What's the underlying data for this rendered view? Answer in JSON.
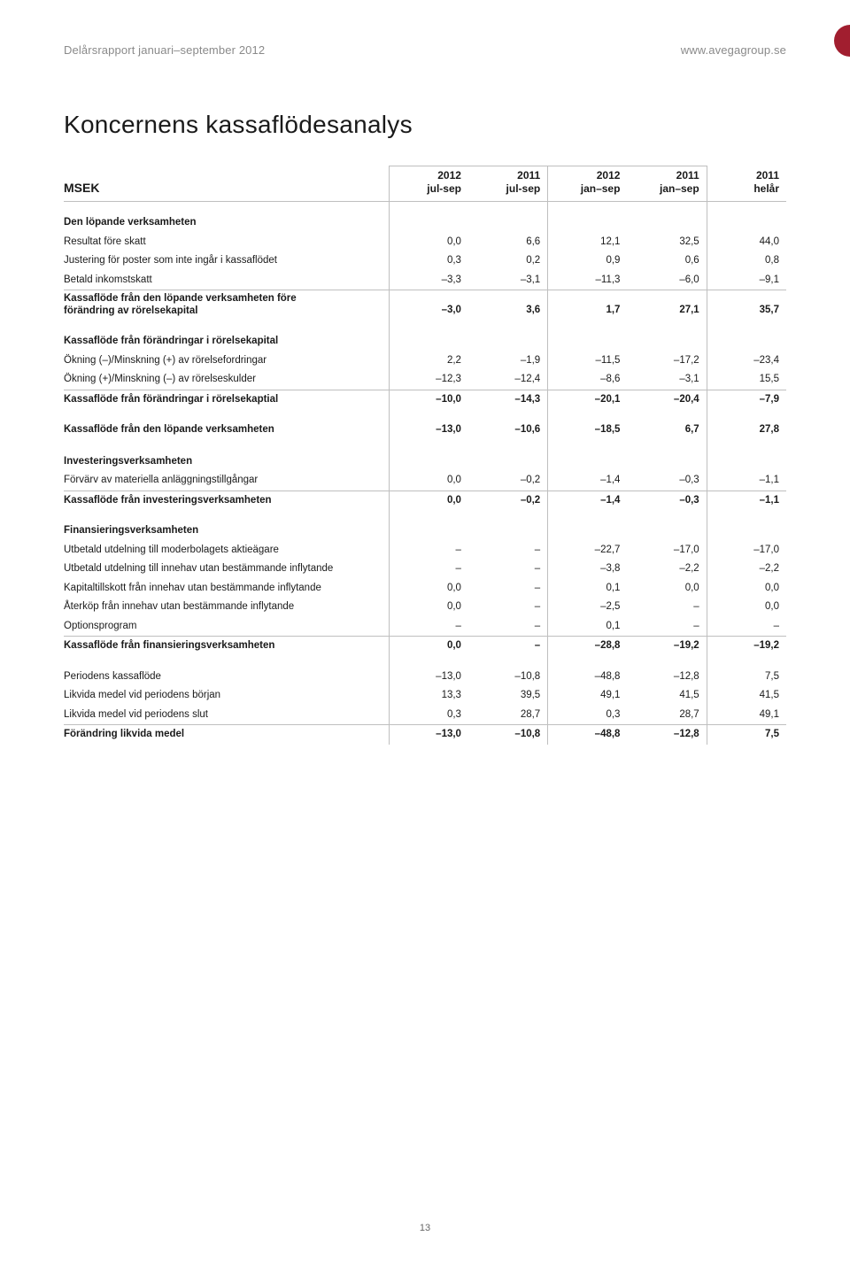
{
  "header": {
    "left": "Delårsrapport januari–september 2012",
    "right": "www.avegagroup.se"
  },
  "colors": {
    "spot": "#a11e2f",
    "txt_header": "#8a8a8a",
    "rule": "#bfbfbf",
    "body_text": "#1a1a1a"
  },
  "title": "Koncernens kassaflödesanalys",
  "columns": {
    "row_header": "MSEK",
    "headers": [
      {
        "y": "2012",
        "p": "jul-sep"
      },
      {
        "y": "2011",
        "p": "jul-sep"
      },
      {
        "y": "2012",
        "p": "jan–sep"
      },
      {
        "y": "2011",
        "p": "jan–sep"
      },
      {
        "y": "2011",
        "p": "helår"
      }
    ]
  },
  "sections": [
    {
      "title": "Den löpande verksamheten",
      "rows": [
        {
          "label": "Resultat före skatt",
          "v": [
            "0,0",
            "6,6",
            "12,1",
            "32,5",
            "44,0"
          ]
        },
        {
          "label": "Justering för poster som inte ingår i kassaflödet",
          "v": [
            "0,3",
            "0,2",
            "0,9",
            "0,6",
            "0,8"
          ]
        },
        {
          "label": "Betald inkomstskatt",
          "v": [
            "–3,3",
            "–3,1",
            "–11,3",
            "–6,0",
            "–9,1"
          ]
        }
      ],
      "subtotal": {
        "label": "Kassaflöde från den löpande verksamheten före förändring av rörelsekapital",
        "v": [
          "–3,0",
          "3,6",
          "1,7",
          "27,1",
          "35,7"
        ],
        "twoline": true
      }
    },
    {
      "title": "Kassaflöde från förändringar i rörelsekapital",
      "rows": [
        {
          "label": "Ökning (–)/Minskning (+) av rörelsefordringar",
          "v": [
            "2,2",
            "–1,9",
            "–11,5",
            "–17,2",
            "–23,4"
          ]
        },
        {
          "label": "Ökning (+)/Minskning (–) av rörelseskulder",
          "v": [
            "–12,3",
            "–12,4",
            "–8,6",
            "–3,1",
            "15,5"
          ]
        }
      ],
      "subtotal": {
        "label": "Kassaflöde från förändringar i rörelsekaptial",
        "v": [
          "–10,0",
          "–14,3",
          "–20,1",
          "–20,4",
          "–7,9"
        ]
      }
    },
    {
      "standalone": true,
      "subtotal": {
        "label": "Kassaflöde från den löpande verksamheten",
        "v": [
          "–13,0",
          "–10,6",
          "–18,5",
          "6,7",
          "27,8"
        ]
      }
    },
    {
      "title": "Investeringsverksamheten",
      "rows": [
        {
          "label": "Förvärv av materiella anläggningstillgångar",
          "v": [
            "0,0",
            "–0,2",
            "–1,4",
            "–0,3",
            "–1,1"
          ]
        }
      ],
      "subtotal": {
        "label": "Kassaflöde från investeringsverksamheten",
        "v": [
          "0,0",
          "–0,2",
          "–1,4",
          "–0,3",
          "–1,1"
        ]
      }
    },
    {
      "title": "Finansieringsverksamheten",
      "rows": [
        {
          "label": "Utbetald utdelning till moderbolagets aktieägare",
          "v": [
            "–",
            "–",
            "–22,7",
            "–17,0",
            "–17,0"
          ]
        },
        {
          "label": "Utbetald utdelning till innehav utan bestämmande inflytande",
          "v": [
            "–",
            "–",
            "–3,8",
            "–2,2",
            "–2,2"
          ]
        },
        {
          "label": "Kapitaltillskott från innehav utan bestämmande inflytande",
          "v": [
            "0,0",
            "–",
            "0,1",
            "0,0",
            "0,0"
          ]
        },
        {
          "label": "Återköp från innehav utan bestämmande inflytande",
          "v": [
            "0,0",
            "–",
            "–2,5",
            "–",
            "0,0"
          ]
        },
        {
          "label": "Optionsprogram",
          "v": [
            "–",
            "–",
            "0,1",
            "–",
            "–"
          ]
        }
      ],
      "subtotal": {
        "label": "Kassaflöde från finansieringsverksamheten",
        "v": [
          "0,0",
          "–",
          "–28,8",
          "–19,2",
          "–19,2"
        ]
      }
    },
    {
      "title_hidden": true,
      "rows": [
        {
          "label": "Periodens kassaflöde",
          "v": [
            "–13,0",
            "–10,8",
            "–48,8",
            "–12,8",
            "7,5"
          ],
          "bold": true,
          "pad_top": true
        },
        {
          "label": "Likvida medel vid periodens början",
          "v": [
            "13,3",
            "39,5",
            "49,1",
            "41,5",
            "41,5"
          ]
        },
        {
          "label": "Likvida medel vid periodens slut",
          "v": [
            "0,3",
            "28,7",
            "0,3",
            "28,7",
            "49,1"
          ]
        }
      ],
      "subtotal": {
        "label": "Förändring likvida medel",
        "v": [
          "–13,0",
          "–10,8",
          "–48,8",
          "–12,8",
          "7,5"
        ]
      }
    }
  ],
  "page_number": "13"
}
